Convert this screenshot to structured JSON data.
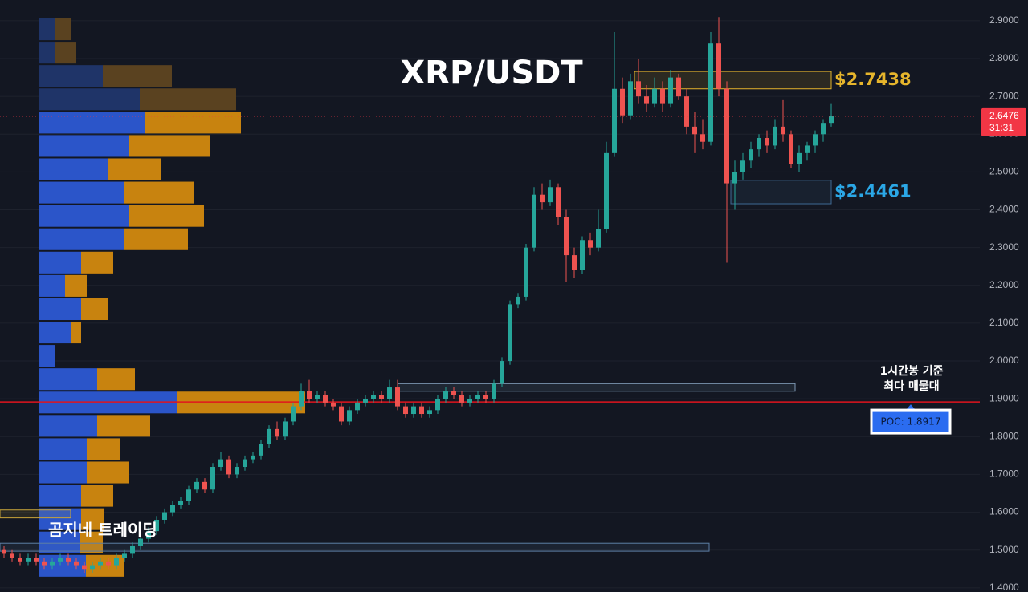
{
  "chart_data": {
    "type": "candlestick",
    "title": "XRP/USDT",
    "watermark": "곰지네 트레이딩",
    "annotation": [
      "1시간봉 기준",
      "최다 매물대"
    ],
    "ylim": [
      1.389,
      2.955
    ],
    "yticks": [
      {
        "value": 1.4,
        "label": "1.4000"
      },
      {
        "value": 1.5,
        "label": "1.5000"
      },
      {
        "value": 1.6,
        "label": "1.6000"
      },
      {
        "value": 1.7,
        "label": "1.7000"
      },
      {
        "value": 1.8,
        "label": "1.8000"
      },
      {
        "value": 1.9,
        "label": "1.9000"
      },
      {
        "value": 2.0,
        "label": "2.0000"
      },
      {
        "value": 2.1,
        "label": "2.1000"
      },
      {
        "value": 2.2,
        "label": "2.2000"
      },
      {
        "value": 2.3,
        "label": "2.3000"
      },
      {
        "value": 2.4,
        "label": "2.4000"
      },
      {
        "value": 2.5,
        "label": "2.5000"
      },
      {
        "value": 2.6,
        "label": "2.6000"
      },
      {
        "value": 2.7,
        "label": "2.7000"
      },
      {
        "value": 2.8,
        "label": "2.8000"
      },
      {
        "value": 2.9,
        "label": "2.9000"
      }
    ],
    "grid": true,
    "up_color": "#26a69a",
    "down_color": "#ef5350",
    "candles": [
      [
        1.5,
        1.51,
        1.48,
        1.49
      ],
      [
        1.49,
        1.5,
        1.47,
        1.48
      ],
      [
        1.48,
        1.49,
        1.46,
        1.47
      ],
      [
        1.47,
        1.49,
        1.46,
        1.48
      ],
      [
        1.48,
        1.49,
        1.46,
        1.47
      ],
      [
        1.47,
        1.48,
        1.45,
        1.46
      ],
      [
        1.46,
        1.48,
        1.45,
        1.47
      ],
      [
        1.47,
        1.49,
        1.46,
        1.48
      ],
      [
        1.48,
        1.49,
        1.46,
        1.47
      ],
      [
        1.47,
        1.48,
        1.45,
        1.46
      ],
      [
        1.46,
        1.47,
        1.44,
        1.45
      ],
      [
        1.45,
        1.47,
        1.44,
        1.46
      ],
      [
        1.46,
        1.48,
        1.45,
        1.47
      ],
      [
        1.47,
        1.48,
        1.45,
        1.46
      ],
      [
        1.46,
        1.49,
        1.45,
        1.48
      ],
      [
        1.48,
        1.5,
        1.47,
        1.49
      ],
      [
        1.49,
        1.52,
        1.48,
        1.51
      ],
      [
        1.51,
        1.54,
        1.5,
        1.53
      ],
      [
        1.53,
        1.56,
        1.52,
        1.55
      ],
      [
        1.55,
        1.59,
        1.54,
        1.58
      ],
      [
        1.58,
        1.61,
        1.57,
        1.6
      ],
      [
        1.6,
        1.63,
        1.59,
        1.62
      ],
      [
        1.62,
        1.64,
        1.61,
        1.63
      ],
      [
        1.63,
        1.67,
        1.62,
        1.66
      ],
      [
        1.66,
        1.69,
        1.65,
        1.68
      ],
      [
        1.68,
        1.69,
        1.65,
        1.66
      ],
      [
        1.66,
        1.73,
        1.65,
        1.72
      ],
      [
        1.72,
        1.76,
        1.71,
        1.74
      ],
      [
        1.74,
        1.75,
        1.69,
        1.7
      ],
      [
        1.7,
        1.73,
        1.69,
        1.72
      ],
      [
        1.72,
        1.75,
        1.71,
        1.74
      ],
      [
        1.74,
        1.76,
        1.73,
        1.75
      ],
      [
        1.75,
        1.79,
        1.74,
        1.78
      ],
      [
        1.78,
        1.83,
        1.77,
        1.82
      ],
      [
        1.82,
        1.84,
        1.79,
        1.8
      ],
      [
        1.8,
        1.85,
        1.79,
        1.84
      ],
      [
        1.84,
        1.89,
        1.83,
        1.88
      ],
      [
        1.88,
        1.94,
        1.87,
        1.92
      ],
      [
        1.92,
        1.95,
        1.89,
        1.9
      ],
      [
        1.9,
        1.92,
        1.89,
        1.91
      ],
      [
        1.91,
        1.92,
        1.88,
        1.89
      ],
      [
        1.89,
        1.9,
        1.87,
        1.88
      ],
      [
        1.88,
        1.89,
        1.83,
        1.84
      ],
      [
        1.84,
        1.88,
        1.83,
        1.87
      ],
      [
        1.87,
        1.9,
        1.86,
        1.89
      ],
      [
        1.89,
        1.91,
        1.88,
        1.9
      ],
      [
        1.9,
        1.92,
        1.89,
        1.91
      ],
      [
        1.91,
        1.92,
        1.89,
        1.9
      ],
      [
        1.9,
        1.95,
        1.89,
        1.93
      ],
      [
        1.93,
        1.95,
        1.87,
        1.88
      ],
      [
        1.88,
        1.89,
        1.85,
        1.86
      ],
      [
        1.86,
        1.89,
        1.85,
        1.88
      ],
      [
        1.88,
        1.89,
        1.85,
        1.86
      ],
      [
        1.86,
        1.88,
        1.85,
        1.87
      ],
      [
        1.87,
        1.91,
        1.86,
        1.9
      ],
      [
        1.9,
        1.93,
        1.89,
        1.92
      ],
      [
        1.92,
        1.93,
        1.9,
        1.91
      ],
      [
        1.91,
        1.92,
        1.88,
        1.89
      ],
      [
        1.89,
        1.91,
        1.88,
        1.9
      ],
      [
        1.9,
        1.92,
        1.89,
        1.91
      ],
      [
        1.91,
        1.92,
        1.89,
        1.9
      ],
      [
        1.9,
        1.95,
        1.89,
        1.94
      ],
      [
        1.94,
        2.01,
        1.93,
        2.0
      ],
      [
        2.0,
        2.16,
        1.99,
        2.15
      ],
      [
        2.15,
        2.18,
        2.14,
        2.17
      ],
      [
        2.17,
        2.31,
        2.16,
        2.3
      ],
      [
        2.3,
        2.46,
        2.29,
        2.44
      ],
      [
        2.44,
        2.47,
        2.4,
        2.42
      ],
      [
        2.42,
        2.48,
        2.41,
        2.46
      ],
      [
        2.46,
        2.47,
        2.36,
        2.38
      ],
      [
        2.38,
        2.4,
        2.21,
        2.28
      ],
      [
        2.28,
        2.3,
        2.22,
        2.24
      ],
      [
        2.24,
        2.33,
        2.23,
        2.32
      ],
      [
        2.32,
        2.34,
        2.28,
        2.3
      ],
      [
        2.3,
        2.4,
        2.29,
        2.35
      ],
      [
        2.35,
        2.58,
        2.34,
        2.55
      ],
      [
        2.55,
        2.87,
        2.54,
        2.72
      ],
      [
        2.72,
        2.75,
        2.63,
        2.65
      ],
      [
        2.65,
        2.76,
        2.64,
        2.74
      ],
      [
        2.74,
        2.8,
        2.68,
        2.7
      ],
      [
        2.7,
        2.73,
        2.66,
        2.68
      ],
      [
        2.68,
        2.75,
        2.67,
        2.72
      ],
      [
        2.72,
        2.74,
        2.66,
        2.68
      ],
      [
        2.68,
        2.77,
        2.67,
        2.75
      ],
      [
        2.75,
        2.76,
        2.69,
        2.7
      ],
      [
        2.7,
        2.72,
        2.6,
        2.62
      ],
      [
        2.62,
        2.66,
        2.55,
        2.6
      ],
      [
        2.6,
        2.64,
        2.56,
        2.58
      ],
      [
        2.58,
        2.87,
        2.57,
        2.84
      ],
      [
        2.84,
        2.91,
        2.7,
        2.72
      ],
      [
        2.72,
        2.74,
        2.26,
        2.47
      ],
      [
        2.47,
        2.53,
        2.4,
        2.5
      ],
      [
        2.5,
        2.55,
        2.48,
        2.53
      ],
      [
        2.53,
        2.58,
        2.51,
        2.56
      ],
      [
        2.56,
        2.6,
        2.54,
        2.59
      ],
      [
        2.59,
        2.61,
        2.55,
        2.57
      ],
      [
        2.57,
        2.64,
        2.56,
        2.62
      ],
      [
        2.62,
        2.69,
        2.58,
        2.6
      ],
      [
        2.6,
        2.61,
        2.51,
        2.52
      ],
      [
        2.52,
        2.57,
        2.5,
        2.55
      ],
      [
        2.55,
        2.58,
        2.53,
        2.57
      ],
      [
        2.57,
        2.61,
        2.55,
        2.6
      ],
      [
        2.6,
        2.64,
        2.58,
        2.63
      ],
      [
        2.63,
        2.68,
        2.62,
        2.6476
      ]
    ],
    "last_price": 2.6476,
    "countdown": "31:31",
    "last_color": "#f23645",
    "poc": 1.8917,
    "poc_label": "POC: 1.8917",
    "poc_color": "#e0141e",
    "volume_profile": {
      "bins": [
        1.4275,
        1.4892,
        1.5509,
        1.6126,
        1.6743,
        1.736,
        1.7977,
        1.8594,
        1.9211,
        1.9828,
        2.0445,
        2.1062,
        2.1679,
        2.2296,
        2.2913,
        2.353,
        2.4147,
        2.4764,
        2.5381,
        2.5998,
        2.6615,
        2.7232,
        2.7849,
        2.8466,
        2.9083
      ],
      "buy": [
        59,
        52,
        53,
        53,
        60,
        60,
        73,
        172,
        73,
        20,
        40,
        53,
        33,
        53,
        106,
        113,
        106,
        86,
        113,
        132,
        126,
        80,
        20,
        20
      ],
      "sell": [
        47,
        28,
        28,
        40,
        53,
        41,
        66,
        160,
        47,
        0,
        13,
        33,
        27,
        40,
        80,
        93,
        87,
        66,
        100,
        120,
        120,
        86,
        27,
        20
      ],
      "value_area_high": 2.6615,
      "buy_color": "#2b55c9",
      "sell_color": "#c8830f",
      "buy_color_dim": "#1f3468",
      "sell_color_dim": "#5a4220"
    },
    "zones": [
      {
        "price_low": 2.72,
        "price_high": 2.766,
        "start": 78.5,
        "end": 103,
        "color": "#e6b52c",
        "label": "$2.7438"
      },
      {
        "price_low": 2.416,
        "price_high": 2.478,
        "start": 90.5,
        "end": 103,
        "color": "#3f6a94",
        "label": "$2.4461",
        "label_color": "#2ba7e6"
      },
      {
        "price_low": 1.92,
        "price_high": 1.94,
        "start": 49,
        "end": 98.5,
        "color": "#7f9ab5"
      },
      {
        "price_low": 1.497,
        "price_high": 1.518,
        "start": -0.5,
        "end": 87.8,
        "color": "#5d7fa6"
      },
      {
        "price_low": 1.585,
        "price_high": 1.606,
        "start": -0.5,
        "end": 8.3,
        "color": "#c9a53a"
      }
    ]
  }
}
